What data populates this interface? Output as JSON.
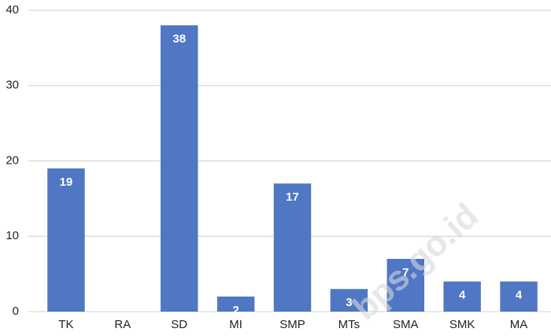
{
  "chart_data": {
    "type": "bar",
    "categories": [
      "TK",
      "RA",
      "SD",
      "MI",
      "SMP",
      "MTs",
      "SMA",
      "SMK",
      "MA"
    ],
    "values": [
      19,
      null,
      38,
      2,
      17,
      3,
      7,
      4,
      4
    ],
    "color": "#4f77c3",
    "ylim": [
      0,
      40
    ],
    "yticks": [
      0,
      10,
      20,
      30,
      40
    ],
    "grid": true,
    "watermark": "bps.go.id"
  }
}
